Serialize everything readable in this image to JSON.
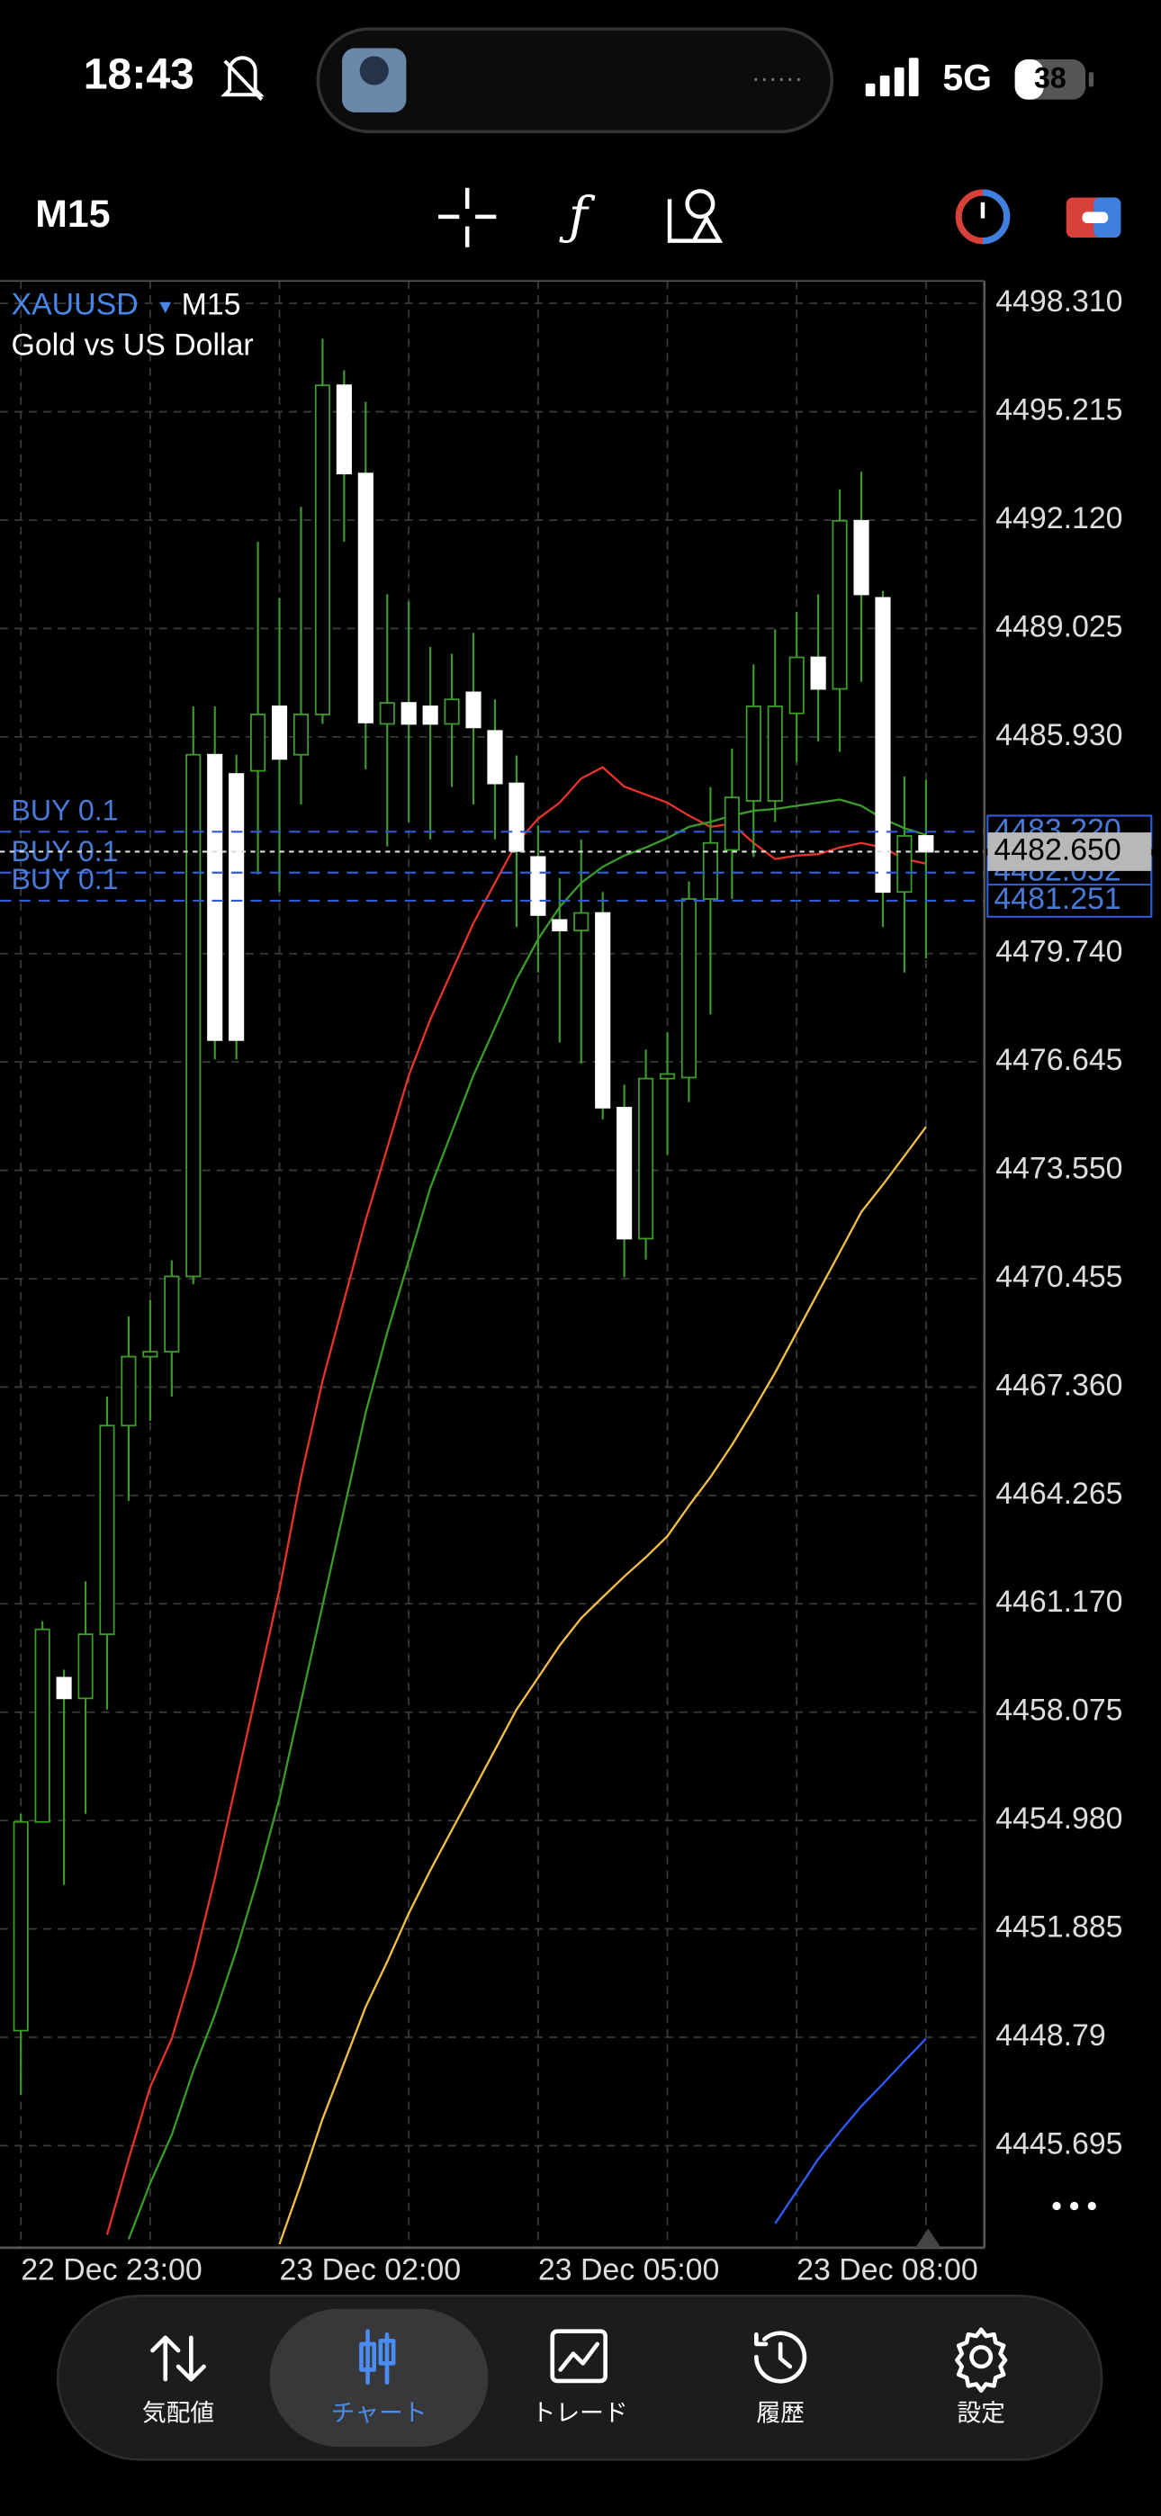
{
  "status_bar": {
    "time": "18:43",
    "network": "5G",
    "battery": "38"
  },
  "toolbar": {
    "timeframe": "M15"
  },
  "chart_data": {
    "type": "candlestick",
    "symbol": "XAUUSD",
    "timeframe": "M15",
    "description": "Gold vs US Dollar",
    "categories": [
      "22 Dec 23:00",
      null,
      null,
      null,
      null,
      null,
      null,
      null,
      null,
      null,
      null,
      null,
      "23 Dec 02:00",
      null,
      null,
      null,
      null,
      null,
      null,
      null,
      null,
      null,
      null,
      null,
      "23 Dec 05:00",
      null,
      null,
      null,
      null,
      null,
      null,
      null,
      null,
      null,
      null,
      null,
      "23 Dec 08:00",
      null,
      null,
      null,
      null,
      null,
      null
    ],
    "open": [
      4448.98,
      4454.94,
      4459.06,
      4458.47,
      4460.3,
      4466.26,
      4468.23,
      4468.37,
      4470.52,
      4485.42,
      4484.87,
      4484.96,
      4486.8,
      4485.42,
      4486.57,
      4495.97,
      4493.45,
      4486.3,
      4486.9,
      4486.8,
      4486.3,
      4487.2,
      4486.1,
      4484.6,
      4482.5,
      4480.7,
      4480.4,
      4480.9,
      4475.34,
      4471.6,
      4476.17,
      4476.2,
      4481.3,
      4482.7,
      4484.1,
      4484.1,
      4486.6,
      4488.2,
      4487.3,
      4492.1,
      4489.9,
      4481.5,
      4483.1
    ],
    "high": [
      4455.17,
      4460.67,
      4459.29,
      4461.81,
      4467.09,
      4469.38,
      4469.84,
      4470.98,
      4486.8,
      4486.8,
      4485.42,
      4491.5,
      4489.9,
      4492.5,
      4497.3,
      4496.4,
      4495.5,
      4490,
      4489.8,
      4488.5,
      4488.3,
      4488.9,
      4487,
      4485.4,
      4483.4,
      4481.9,
      4483,
      4481.5,
      4476,
      4477,
      4477.5,
      4481.8,
      4484.5,
      4485.6,
      4488,
      4489,
      4489.5,
      4490,
      4493,
      4493.5,
      4490.1,
      4484.8,
      4484.7
    ],
    "low": [
      4447.15,
      4454.94,
      4453.14,
      4455.17,
      4458.15,
      4464.11,
      4466.4,
      4467.09,
      4470.3,
      4476.72,
      4476.72,
      4482,
      4481.5,
      4484,
      4486.3,
      4491.5,
      4485,
      4482.8,
      4483.5,
      4483,
      4484.5,
      4484,
      4483,
      4480.5,
      4479.2,
      4477.2,
      4476.6,
      4475,
      4470.5,
      4471,
      4474,
      4475.5,
      4478,
      4481.3,
      4482.5,
      4483.5,
      4485.2,
      4485.8,
      4485.5,
      4487.5,
      4480.5,
      4479.2,
      4479.6
    ],
    "close": [
      4454.94,
      4460.44,
      4458.47,
      4460.3,
      4466.26,
      4468.23,
      4468.37,
      4470.52,
      4485.42,
      4477.27,
      4477.27,
      4486.57,
      4485.3,
      4486.57,
      4495.97,
      4493.45,
      4486.34,
      4486.9,
      4486.3,
      4486.3,
      4487,
      4486.2,
      4484.6,
      4482.67,
      4480.84,
      4480.4,
      4480.9,
      4475.34,
      4471.6,
      4476.17,
      4476.3,
      4481.3,
      4482.9,
      4484.2,
      4486.8,
      4486.8,
      4488.2,
      4487.3,
      4492.1,
      4490,
      4481.5,
      4483.1,
      4482.65
    ],
    "up_color": "#3f9c2c",
    "down_color": "#ffffff",
    "indicators": [
      {
        "color": "#e8332a",
        "values": [
          null,
          null,
          null,
          null,
          4443.15,
          4445.31,
          4447.37,
          4448.75,
          4450.81,
          4453.33,
          4456.08,
          4458.83,
          4461.58,
          4464.79,
          4467.54,
          4469.84,
          4472.13,
          4474.19,
          4476.26,
          4477.86,
          4479.24,
          4480.61,
          4481.76,
          4482.9,
          4483.59,
          4484.05,
          4484.74,
          4485.06,
          4484.51,
          4484.28,
          4484.05,
          4483.68,
          4483.36,
          4483.45,
          4482.9,
          4482.44,
          4482.54,
          4482.58,
          4482.77,
          4482.9,
          4482.77,
          4482.44,
          4482.31
        ]
      },
      {
        "color": "#3a9a2a",
        "values": [
          null,
          null,
          null,
          null,
          null,
          4443.02,
          4444.62,
          4446,
          4447.83,
          4449.43,
          4451.27,
          4453.33,
          4455.62,
          4458.38,
          4461.13,
          4463.88,
          4466.63,
          4468.92,
          4470.98,
          4473.05,
          4474.65,
          4476.26,
          4477.63,
          4479.01,
          4480.15,
          4481.07,
          4481.76,
          4482.22,
          4482.54,
          4482.77,
          4483.04,
          4483.36,
          4483.5,
          4483.68,
          4483.82,
          4483.87,
          4483.96,
          4484.05,
          4484.14,
          4483.96,
          4483.59,
          4483.32,
          4483.13
        ]
      },
      {
        "color": "#f2c044",
        "values": [
          null,
          null,
          null,
          null,
          null,
          null,
          null,
          null,
          null,
          null,
          null,
          null,
          4442.88,
          4444.62,
          4446.46,
          4448.06,
          4449.66,
          4450.95,
          4452.33,
          4453.56,
          4454.71,
          4455.85,
          4457,
          4458.15,
          4459.06,
          4459.98,
          4460.76,
          4461.36,
          4461.95,
          4462.5,
          4463.1,
          4463.97,
          4464.79,
          4465.71,
          4466.72,
          4467.77,
          4468.92,
          4470.07,
          4471.21,
          4472.36,
          4473.14,
          4473.96,
          4474.79
        ]
      },
      {
        "color": "#2f5bff",
        "values": [
          null,
          null,
          null,
          null,
          null,
          null,
          null,
          null,
          null,
          null,
          null,
          null,
          null,
          null,
          null,
          null,
          null,
          null,
          null,
          null,
          null,
          null,
          null,
          null,
          null,
          null,
          null,
          null,
          null,
          null,
          null,
          null,
          null,
          null,
          null,
          4443.47,
          4444.39,
          4445.31,
          4446.09,
          4446.82,
          4447.46,
          4448.11,
          4448.75
        ]
      }
    ],
    "orders": [
      {
        "label": "BUY 0.1",
        "value": 4483.22,
        "value_label": "4483.220"
      },
      {
        "label": "BUY 0.1",
        "value": 4482.052,
        "value_label": "4482.052"
      },
      {
        "label": "BUY 0.1",
        "value": 4481.251,
        "value_label": "4481.251"
      }
    ],
    "current_price": 4482.65,
    "current_price_label": "4482.650",
    "ylim": [
      4442.78,
      4498.95
    ],
    "yticks": [
      {
        "value": 4498.31,
        "label": "4498.310"
      },
      4495.215,
      {
        "value": 4492.12,
        "label": "4492.120"
      },
      4489.025,
      {
        "value": 4485.93,
        "label": "4485.930"
      },
      {
        "value": 4479.74,
        "label": "4479.740"
      },
      4476.645,
      {
        "value": 4473.55,
        "label": "4473.550"
      },
      4470.455,
      {
        "value": 4467.36,
        "label": "4467.360"
      },
      4464.265,
      {
        "value": 4461.17,
        "label": "4461.170"
      },
      4458.075,
      {
        "value": 4454.98,
        "label": "4454.980"
      },
      4451.885,
      4448.79,
      4445.695
    ],
    "grid": true
  },
  "tab_bar": {
    "active": 1,
    "tabs": [
      {
        "label": "気配値"
      },
      {
        "label": "チャート"
      },
      {
        "label": "トレード"
      },
      {
        "label": "履歴"
      },
      {
        "label": "設定"
      }
    ]
  }
}
